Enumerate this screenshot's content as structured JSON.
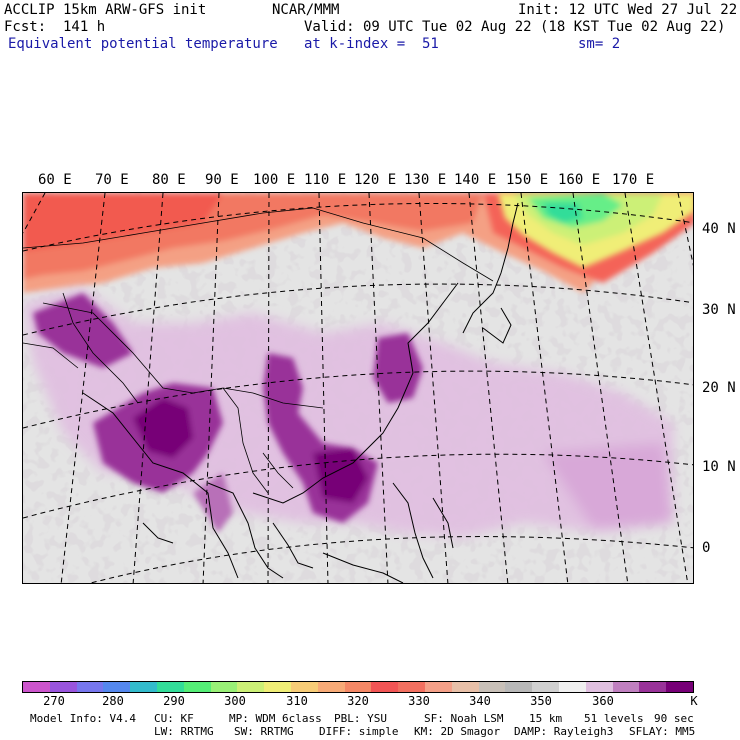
{
  "header": {
    "line1_left": "ACCLIP 15km ARW-GFS init",
    "line1_mid": "NCAR/MMM",
    "line1_right": "Init: 12 UTC Wed 27 Jul 22",
    "line2_left": "Fcst:  141 h",
    "line2_right": "Valid: 09 UTC Tue 02 Aug 22 (18 KST Tue 02 Aug 22)",
    "line3_left": "Equivalent potential temperature",
    "line3_mid": "at k-index =  51",
    "line3_right": "sm= 2"
  },
  "map": {
    "longitude_labels": [
      "60 E",
      "70 E",
      "80 E",
      "90 E",
      "100 E",
      "110 E",
      "120 E",
      "130 E",
      "140 E",
      "150 E",
      "160 E",
      "170 E"
    ],
    "latitude_labels": [
      "40 N",
      "30 N",
      "20 N",
      "10 N",
      "0"
    ]
  },
  "colorbar": {
    "colors": [
      "#cc55cc",
      "#9955dd",
      "#7777ee",
      "#5588ee",
      "#33bbcc",
      "#33dd99",
      "#55ee77",
      "#99f077",
      "#ccf077",
      "#f0ee77",
      "#f7cc77",
      "#f7aa77",
      "#f48866",
      "#f25555",
      "#f27060",
      "#f4a088",
      "#e8c0a8",
      "#c8c0b8",
      "#b8b8b8",
      "#d0d0d0",
      "#f0f0f0",
      "#e0c0e0",
      "#c080c0",
      "#993399",
      "#770077"
    ],
    "ticks": [
      "270",
      "280",
      "290",
      "300",
      "310",
      "320",
      "330",
      "340",
      "350",
      "360"
    ],
    "unit": "K"
  },
  "footer": {
    "row1": [
      "Model Info: V4.4",
      "CU: KF",
      "MP: WDM 6class",
      "PBL: YSU",
      "SF: Noah LSM",
      "15 km",
      "51 levels",
      "90 sec"
    ],
    "row2": [
      "LW: RRTMG",
      "SW: RRTMG",
      "DIFF: simple",
      "KM: 2D Smagor",
      "DAMP: Rayleigh3",
      "SFLAY: MM5"
    ]
  }
}
